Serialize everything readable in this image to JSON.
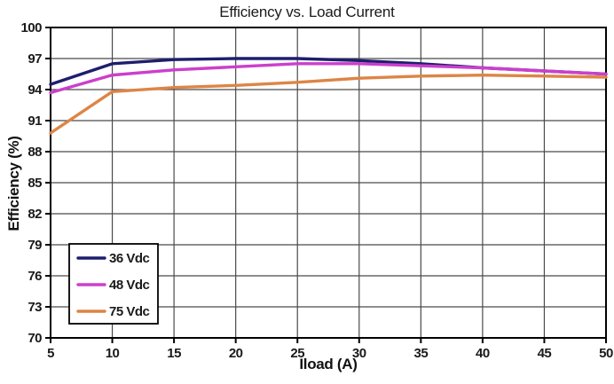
{
  "title": "Efficiency vs. Load Current",
  "chart_data": {
    "type": "line",
    "title": "Efficiency vs. Load Current",
    "xlabel": "Iload (A)",
    "ylabel": "Efficiency (%)",
    "x": [
      5,
      10,
      15,
      20,
      25,
      30,
      35,
      40,
      45,
      50
    ],
    "xticks": [
      5,
      10,
      15,
      20,
      25,
      30,
      35,
      40,
      45,
      50
    ],
    "yticks": [
      70,
      73,
      76,
      79,
      82,
      85,
      88,
      91,
      94,
      97,
      100
    ],
    "xlim": [
      5,
      50
    ],
    "ylim": [
      70,
      100
    ],
    "grid": true,
    "legend_position": "bottom-left",
    "series": [
      {
        "name": "36 Vdc",
        "color": "#1e1e6e",
        "values": [
          94.5,
          96.5,
          96.9,
          97.0,
          97.0,
          96.8,
          96.5,
          96.1,
          95.8,
          95.5
        ]
      },
      {
        "name": "48 Vdc",
        "color": "#cc3fcc",
        "values": [
          93.7,
          95.4,
          95.9,
          96.2,
          96.5,
          96.5,
          96.3,
          96.1,
          95.8,
          95.5
        ]
      },
      {
        "name": "75 Vdc",
        "color": "#dd8545",
        "values": [
          89.8,
          93.8,
          94.2,
          94.4,
          94.7,
          95.1,
          95.3,
          95.4,
          95.3,
          95.2
        ]
      }
    ]
  },
  "colors": {
    "grid": "#4a4a4a",
    "axis": "#000000",
    "text": "#1a1a1a",
    "background": "#ffffff",
    "legend_border": "#000000",
    "legend_fill": "#ffffff"
  }
}
